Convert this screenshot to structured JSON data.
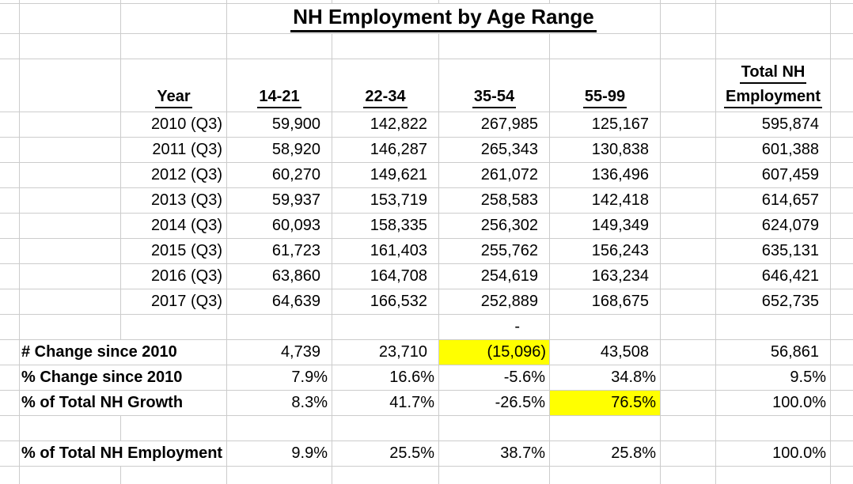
{
  "title": "NH Employment by Age Range",
  "columns": {
    "year": "Year",
    "c1": "14-21",
    "c2": "22-34",
    "c3": "35-54",
    "c4": "55-99",
    "total_line1": "Total NH",
    "total_line2": "Employment"
  },
  "rows": [
    {
      "year": "2010 (Q3)",
      "v1": "59,900",
      "v2": "142,822",
      "v3": "267,985",
      "v4": "125,167",
      "total": "595,874"
    },
    {
      "year": "2011 (Q3)",
      "v1": "58,920",
      "v2": "146,287",
      "v3": "265,343",
      "v4": "130,838",
      "total": "601,388"
    },
    {
      "year": "2012 (Q3)",
      "v1": "60,270",
      "v2": "149,621",
      "v3": "261,072",
      "v4": "136,496",
      "total": "607,459"
    },
    {
      "year": "2013 (Q3)",
      "v1": "59,937",
      "v2": "153,719",
      "v3": "258,583",
      "v4": "142,418",
      "total": "614,657"
    },
    {
      "year": "2014 (Q3)",
      "v1": "60,093",
      "v2": "158,335",
      "v3": "256,302",
      "v4": "149,349",
      "total": "624,079"
    },
    {
      "year": "2015 (Q3)",
      "v1": "61,723",
      "v2": "161,403",
      "v3": "255,762",
      "v4": "156,243",
      "total": "635,131"
    },
    {
      "year": "2016 (Q3)",
      "v1": "63,860",
      "v2": "164,708",
      "v3": "254,619",
      "v4": "163,234",
      "total": "646,421"
    },
    {
      "year": "2017 (Q3)",
      "v1": "64,639",
      "v2": "166,532",
      "v3": "252,889",
      "v4": "168,675",
      "total": "652,735"
    }
  ],
  "dash_row": {
    "c3": "-"
  },
  "summary": {
    "num_change": {
      "label": "# Change since 2010",
      "v1": "4,739",
      "v2": "23,710",
      "v3": "(15,096)",
      "v4": "43,508",
      "total": "56,861"
    },
    "pct_change": {
      "label": "% Change since 2010",
      "v1": "7.9%",
      "v2": "16.6%",
      "v3": "-5.6%",
      "v4": "34.8%",
      "total": "9.5%"
    },
    "pct_growth": {
      "label": "% of Total NH Growth",
      "v1": "8.3%",
      "v2": "41.7%",
      "v3": "-26.5%",
      "v4": "76.5%",
      "total": "100.0%"
    },
    "pct_employment": {
      "label": "% of Total NH Employment",
      "v1": "9.9%",
      "v2": "25.5%",
      "v3": "38.7%",
      "v4": "25.8%",
      "total": "100.0%"
    }
  },
  "colors": {
    "highlight": "#ffff00",
    "gridline": "#cccccc"
  }
}
